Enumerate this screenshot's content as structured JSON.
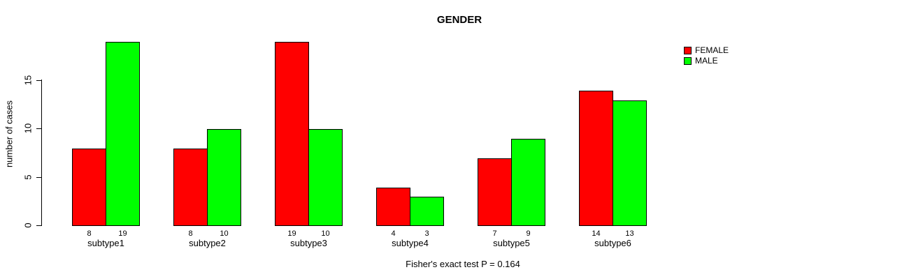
{
  "chart_data": {
    "type": "bar",
    "title": "GENDER",
    "xlabel": "",
    "ylabel": "number of cases",
    "annotation": "Fisher's exact test P = 0.164",
    "categories": [
      "subtype1",
      "subtype2",
      "subtype3",
      "subtype4",
      "subtype5",
      "subtype6"
    ],
    "series": [
      {
        "name": "FEMALE",
        "color": "#ff0000",
        "values": [
          8,
          8,
          19,
          4,
          7,
          14
        ]
      },
      {
        "name": "MALE",
        "color": "#00ff00",
        "values": [
          19,
          10,
          10,
          3,
          9,
          13
        ]
      }
    ],
    "yticks": [
      0,
      5,
      10,
      15
    ],
    "ylim": [
      0,
      19
    ],
    "grid": false,
    "legend_position": "top-right",
    "bar_value_labels": true,
    "bar_border_color": "#000000",
    "axis_color": "#000000"
  }
}
